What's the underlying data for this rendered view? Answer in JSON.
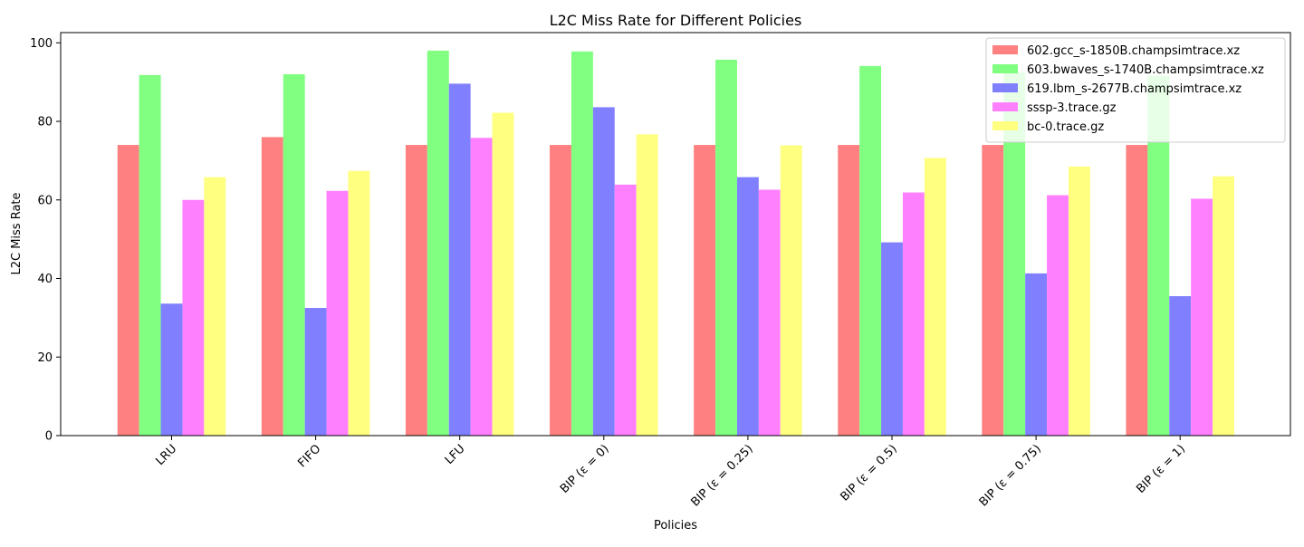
{
  "chart_data": {
    "type": "bar",
    "title": "L2C Miss Rate for Different Policies",
    "xlabel": "Policies",
    "ylabel": "L2C Miss Rate",
    "ylim": [
      0,
      102.6
    ],
    "yticks": [
      0,
      20,
      40,
      60,
      80,
      100
    ],
    "grid": false,
    "legend_position": "top-right",
    "categories": [
      "LRU",
      "FIFO",
      "LFU",
      "BIP (ε = 0)",
      "BIP (ε = 0.25)",
      "BIP (ε = 0.5)",
      "BIP (ε = 0.75)",
      "BIP (ε = 1)"
    ],
    "series": [
      {
        "name": "602.gcc_s-1850B.champsimtrace.xz",
        "color": "#ff8080",
        "values": [
          74.0,
          76.0,
          74.0,
          74.0,
          74.0,
          74.0,
          74.0,
          74.0
        ]
      },
      {
        "name": "603.bwaves_s-1740B.champsimtrace.xz",
        "color": "#80ff80",
        "values": [
          91.8,
          92.0,
          98.0,
          97.8,
          95.7,
          94.1,
          92.5,
          91.6
        ]
      },
      {
        "name": "619.lbm_s-2677B.champsimtrace.xz",
        "color": "#8080ff",
        "values": [
          33.6,
          32.5,
          89.6,
          83.6,
          65.8,
          49.2,
          41.3,
          35.5
        ]
      },
      {
        "name": "sssp-3.trace.gz",
        "color": "#ff80ff",
        "values": [
          60.0,
          62.3,
          75.8,
          63.9,
          62.6,
          61.9,
          61.2,
          60.3
        ]
      },
      {
        "name": "bc-0.trace.gz",
        "color": "#ffff80",
        "values": [
          65.8,
          67.4,
          82.2,
          76.7,
          73.9,
          70.7,
          68.5,
          66.0
        ]
      }
    ]
  }
}
